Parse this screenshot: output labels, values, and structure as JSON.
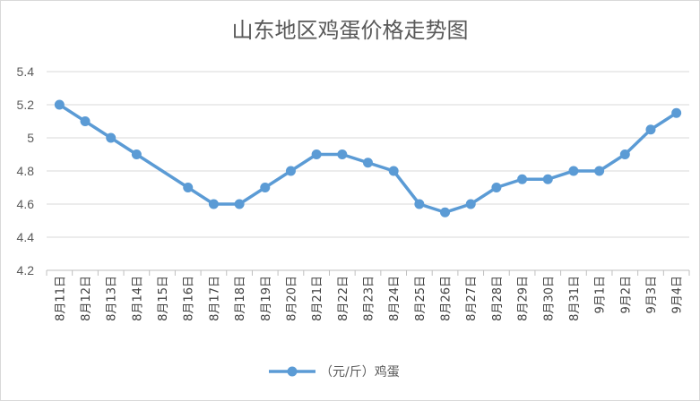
{
  "chart_data": {
    "type": "line",
    "title": "山东地区鸡蛋价格走势图",
    "xlabel": "",
    "ylabel": "",
    "ylim": [
      4.2,
      5.4
    ],
    "yticks": [
      4.2,
      4.4,
      4.6,
      4.8,
      5,
      5.2,
      5.4
    ],
    "grid": true,
    "legend_position": "bottom",
    "categories": [
      "8月11日",
      "8月12日",
      "8月13日",
      "8月14日",
      "8月15日",
      "8月16日",
      "8月17日",
      "8月18日",
      "8月19日",
      "8月20日",
      "8月21日",
      "8月22日",
      "8月23日",
      "8月24日",
      "8月25日",
      "8月26日",
      "8月27日",
      "8月28日",
      "8月29日",
      "8月30日",
      "8月31日",
      "9月1日",
      "9月2日",
      "9月3日",
      "9月4日"
    ],
    "series": [
      {
        "name": "（元/斤）鸡蛋",
        "color": "#5b9bd5",
        "values": [
          5.2,
          5.1,
          5.0,
          4.9,
          null,
          4.7,
          4.6,
          4.6,
          4.7,
          4.8,
          4.9,
          4.9,
          4.85,
          4.8,
          4.6,
          4.55,
          4.6,
          4.7,
          4.75,
          4.75,
          4.8,
          4.8,
          4.9,
          5.05,
          5.15
        ]
      }
    ]
  }
}
